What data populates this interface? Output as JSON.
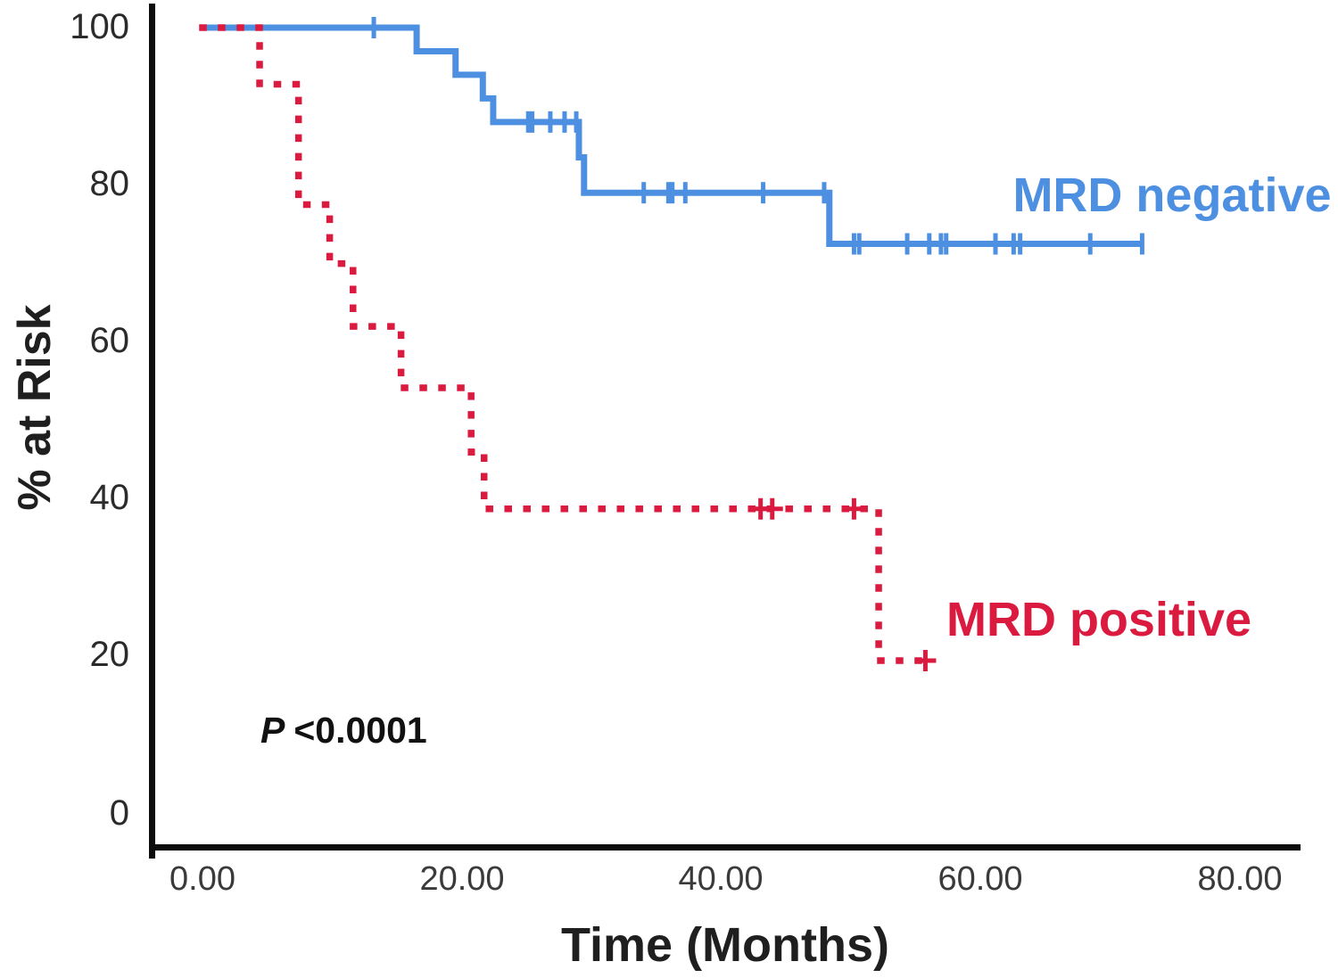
{
  "axes": {
    "y_label": "% at Risk",
    "x_label": "Time (Months)",
    "y_ticks": [
      "100",
      "80",
      "60",
      "40",
      "20",
      "0"
    ],
    "y_tick_values": [
      100,
      80,
      60,
      40,
      20,
      0
    ],
    "x_ticks": [
      "0.00",
      "20.00",
      "40.00",
      "60.00",
      "80.00"
    ],
    "x_tick_values": [
      0,
      20,
      40,
      60,
      80
    ]
  },
  "annotation": {
    "p_prefix": "P",
    "p_value": "<0.0001"
  },
  "colors": {
    "negative_blue": "#4D8FE0",
    "positive_red": "#DA1A3F",
    "axis_black": "#0d0d0d",
    "text_dark": "#1f1f1f"
  },
  "chart_data": {
    "type": "line",
    "subtype": "kaplan-meier-step",
    "title": "",
    "xlabel": "Time (Months)",
    "ylabel": "% at Risk",
    "xlim": [
      0,
      84.6
    ],
    "ylim": [
      0,
      100
    ],
    "grid": false,
    "legend_position": "inline-labels",
    "p_value_annotation": "P <0.0001",
    "series": [
      {
        "name": "MRD negative",
        "label": "MRD negative",
        "color": "#4D8FE0",
        "line_style": "solid",
        "steps_time_percent": [
          [
            0,
            100
          ],
          [
            16.5,
            97
          ],
          [
            19.5,
            94
          ],
          [
            21.6,
            91
          ],
          [
            22.4,
            88
          ],
          [
            29.0,
            83.5
          ],
          [
            29.4,
            79
          ],
          [
            48.3,
            72.5
          ]
        ],
        "end_time": 72.4,
        "censor_marks_time_percent": [
          [
            13.2,
            100
          ],
          [
            25.1,
            88
          ],
          [
            25.4,
            88
          ],
          [
            26.8,
            88
          ],
          [
            27.9,
            88
          ],
          [
            28.8,
            88
          ],
          [
            34.0,
            79
          ],
          [
            35.9,
            79
          ],
          [
            36.2,
            79
          ],
          [
            37.2,
            79
          ],
          [
            43.2,
            79
          ],
          [
            47.9,
            79
          ],
          [
            50.2,
            72.5
          ],
          [
            50.6,
            72.5
          ],
          [
            54.3,
            72.5
          ],
          [
            56.0,
            72.5
          ],
          [
            56.9,
            72.5
          ],
          [
            57.3,
            72.5
          ],
          [
            61.1,
            72.5
          ],
          [
            62.5,
            72.5
          ],
          [
            63.0,
            72.5
          ],
          [
            68.4,
            72.5
          ],
          [
            72.4,
            72.5
          ]
        ]
      },
      {
        "name": "MRD positive",
        "label": "MRD positive",
        "color": "#DA1A3F",
        "line_style": "dotted",
        "steps_time_percent": [
          [
            0,
            100
          ],
          [
            4.4,
            92.8
          ],
          [
            7.4,
            77.5
          ],
          [
            9.8,
            70
          ],
          [
            11.6,
            62
          ],
          [
            15.3,
            54.2
          ],
          [
            20.7,
            46
          ],
          [
            21.7,
            38.8
          ],
          [
            52.1,
            19.5
          ]
        ],
        "end_time": 55.7,
        "censor_marks_time_percent": [
          [
            43.0,
            38.8
          ],
          [
            43.9,
            38.8
          ],
          [
            50.2,
            38.8
          ],
          [
            55.7,
            19.5
          ]
        ]
      }
    ]
  }
}
